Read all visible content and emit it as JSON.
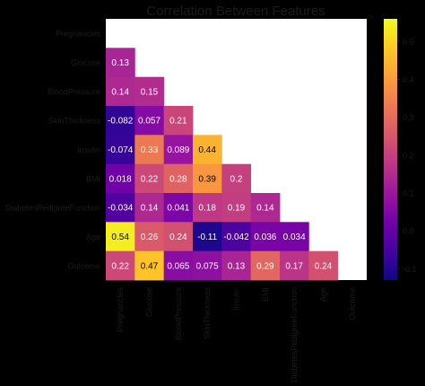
{
  "chart_data": {
    "type": "heatmap",
    "title": "Correlation Between Features",
    "variables": [
      "Pregnancies",
      "Glucose",
      "BloodPressure",
      "SkinThickness",
      "Insulin",
      "BMI",
      "DiabetesPedigreeFunction",
      "Age",
      "Outcome"
    ],
    "mask": "upper triangle including diagonal",
    "values": [
      [
        null,
        null,
        null,
        null,
        null,
        null,
        null,
        null,
        null
      ],
      [
        0.13,
        null,
        null,
        null,
        null,
        null,
        null,
        null,
        null
      ],
      [
        0.14,
        0.15,
        null,
        null,
        null,
        null,
        null,
        null,
        null
      ],
      [
        -0.082,
        0.057,
        0.21,
        null,
        null,
        null,
        null,
        null,
        null
      ],
      [
        -0.074,
        0.33,
        0.089,
        0.44,
        null,
        null,
        null,
        null,
        null
      ],
      [
        0.018,
        0.22,
        0.28,
        0.39,
        0.2,
        null,
        null,
        null,
        null
      ],
      [
        -0.034,
        0.14,
        0.041,
        0.18,
        0.19,
        0.14,
        null,
        null,
        null
      ],
      [
        0.54,
        0.26,
        0.24,
        -0.11,
        -0.042,
        0.036,
        0.034,
        null,
        null
      ],
      [
        0.22,
        0.47,
        0.065,
        0.075,
        0.13,
        0.29,
        0.17,
        0.24,
        null
      ]
    ],
    "colormap": "plasma",
    "colorbar": {
      "range": [
        -0.13,
        0.56
      ],
      "ticks": [
        -0.1,
        0.0,
        0.1,
        0.2,
        0.3,
        0.4,
        0.5
      ],
      "tick_labels": [
        "-0.1",
        "0.0",
        "0.1",
        "0.2",
        "0.3",
        "0.4",
        "0.5"
      ],
      "position": "right"
    },
    "grid": false
  }
}
